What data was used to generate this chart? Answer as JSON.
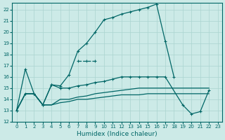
{
  "xlabel": "Humidex (Indice chaleur)",
  "bg_color": "#cceae7",
  "grid_color": "#aad4d0",
  "line_color": "#006666",
  "xlim": [
    -0.5,
    23.5
  ],
  "ylim": [
    12,
    22.6
  ],
  "xticks": [
    0,
    1,
    2,
    3,
    4,
    5,
    6,
    7,
    8,
    9,
    10,
    11,
    12,
    13,
    14,
    15,
    16,
    17,
    18,
    19,
    20,
    21,
    22,
    23
  ],
  "yticks": [
    12,
    13,
    14,
    15,
    16,
    17,
    18,
    19,
    20,
    21,
    22
  ],
  "line1_x": [
    0,
    1,
    2,
    3,
    4,
    5,
    6,
    7,
    8,
    9,
    10,
    11,
    12,
    13,
    14,
    15,
    16,
    17,
    18
  ],
  "line1_y": [
    13,
    16.7,
    14.5,
    13.5,
    15.3,
    15.2,
    16.2,
    18.3,
    19.0,
    20.0,
    21.1,
    21.3,
    21.6,
    21.8,
    22.0,
    22.2,
    22.5,
    19.2,
    16.0
  ],
  "line2_x": [
    7,
    8,
    9
  ],
  "line2_y": [
    17.4,
    17.4,
    17.4
  ],
  "line3_x": [
    0,
    1,
    2,
    3,
    4,
    5,
    6,
    7,
    8,
    9,
    10,
    11,
    12,
    13,
    14,
    15,
    16,
    17,
    19,
    20,
    21,
    22
  ],
  "line3_y": [
    13.0,
    14.5,
    14.5,
    13.5,
    15.3,
    15.0,
    15.0,
    15.2,
    15.3,
    15.5,
    15.6,
    15.8,
    16.0,
    16.0,
    16.0,
    16.0,
    16.0,
    16.0,
    13.5,
    12.7,
    12.9,
    14.8
  ],
  "line4_x": [
    0,
    1,
    2,
    3,
    4,
    5,
    6,
    7,
    8,
    9,
    10,
    11,
    12,
    13,
    14,
    15,
    16,
    17,
    18,
    19,
    20,
    21,
    22
  ],
  "line4_y": [
    13.0,
    14.5,
    14.5,
    13.5,
    13.5,
    14.0,
    14.0,
    14.2,
    14.3,
    14.5,
    14.6,
    14.7,
    14.8,
    14.9,
    15.0,
    15.0,
    15.0,
    15.0,
    15.0,
    15.0,
    15.0,
    15.0,
    15.0
  ],
  "line5_x": [
    0,
    1,
    2,
    3,
    4,
    5,
    6,
    7,
    8,
    9,
    10,
    11,
    12,
    13,
    14,
    15,
    16,
    17,
    18,
    19,
    20,
    21,
    22
  ],
  "line5_y": [
    13.0,
    14.5,
    14.5,
    13.5,
    13.5,
    13.7,
    13.8,
    14.0,
    14.0,
    14.1,
    14.2,
    14.3,
    14.4,
    14.4,
    14.4,
    14.5,
    14.5,
    14.5,
    14.5,
    14.5,
    14.5,
    14.5,
    14.5
  ]
}
